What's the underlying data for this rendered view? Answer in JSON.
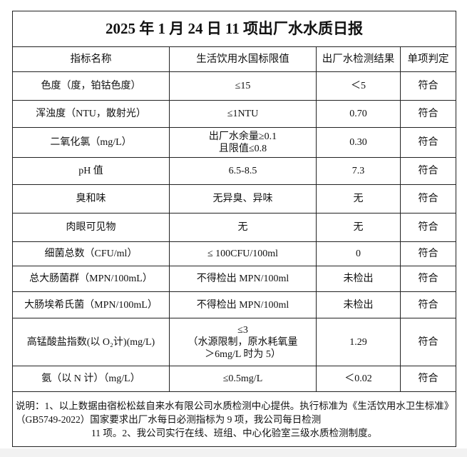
{
  "title": "2025 年 1 月 24 日 11 项出厂水水质日报",
  "headers": [
    "指标名称",
    "生活饮用水国标限值",
    "出厂水检测结果",
    "单项判定"
  ],
  "rows": [
    {
      "name": "色度（度，铂钴色度）",
      "limit": [
        "≤15"
      ],
      "result": "＜5",
      "verdict": "符合"
    },
    {
      "name": "浑浊度（NTU，散射光）",
      "limit": [
        "≤1NTU"
      ],
      "result": "0.70",
      "verdict": "符合"
    },
    {
      "name": "二氧化氯（mg/L）",
      "limit": [
        "出厂水余量≥0.1",
        "且限值≤0.8"
      ],
      "result": "0.30",
      "verdict": "符合"
    },
    {
      "name": "pH 值",
      "limit": [
        "6.5-8.5"
      ],
      "result": "7.3",
      "verdict": "符合"
    },
    {
      "name": "臭和味",
      "limit": [
        "无异臭、异味"
      ],
      "result": "无",
      "verdict": "符合"
    },
    {
      "name": "肉眼可见物",
      "limit": [
        "无"
      ],
      "result": "无",
      "verdict": "符合"
    },
    {
      "name": "细菌总数（CFU/ml）",
      "limit": [
        "≤ 100CFU/100ml"
      ],
      "result": "0",
      "verdict": "符合"
    },
    {
      "name": "总大肠菌群（MPN/100mL）",
      "limit": [
        "不得检出 MPN/100ml"
      ],
      "result": "未检出",
      "verdict": "符合"
    },
    {
      "name": "大肠埃希氏菌（MPN/100mL）",
      "limit": [
        "不得检出 MPN/100ml"
      ],
      "result": "未检出",
      "verdict": "符合"
    },
    {
      "name": "高锰酸盐指数(以 O₂计)(mg/L)",
      "limit": [
        "≤3",
        "（水源限制，原水耗氧量",
        "＞6mg/L 时为 5）"
      ],
      "result": "1.29",
      "verdict": "符合"
    },
    {
      "name": "氨（以 N 计）（mg/L）",
      "limit": [
        "≤0.5mg/L"
      ],
      "result": "＜0.02",
      "verdict": "符合"
    }
  ],
  "note": {
    "line1": "说明：1、以上数据由宿松松兹自来水有限公司水质检测中心提供。执行标准为《生活饮用水卫生标准》（GB5749-2022）国家要求出厂水每日必测指标为 9 项，我公司每日检测",
    "line2": "11 项。2、我公司实行在线、班组、中心化验室三级水质检测制度。"
  }
}
